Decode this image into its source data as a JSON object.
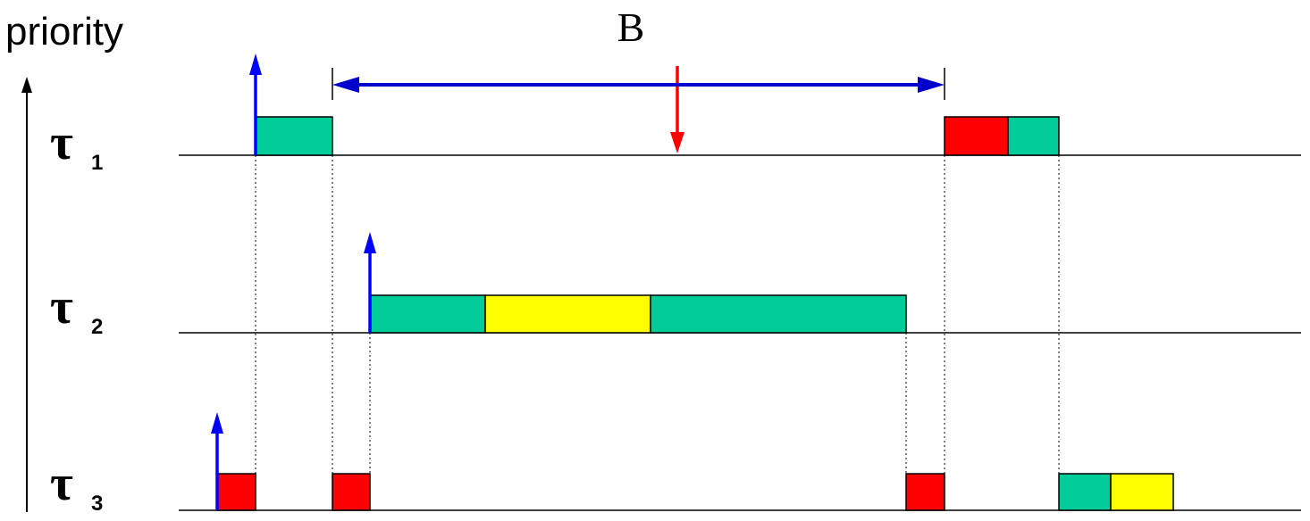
{
  "axis_label": "priority",
  "interval_label": "B",
  "tasks": [
    {
      "symbol": "τ",
      "index": "1"
    },
    {
      "symbol": "τ",
      "index": "2"
    },
    {
      "symbol": "τ",
      "index": "3"
    }
  ],
  "colors": {
    "normal": "#00cc99",
    "critical": "#ff0000",
    "alt": "#ffff00",
    "release_arrow": "#0000ff",
    "event_arrow": "#ff0000",
    "interval_arrow": "#0000cc"
  }
}
